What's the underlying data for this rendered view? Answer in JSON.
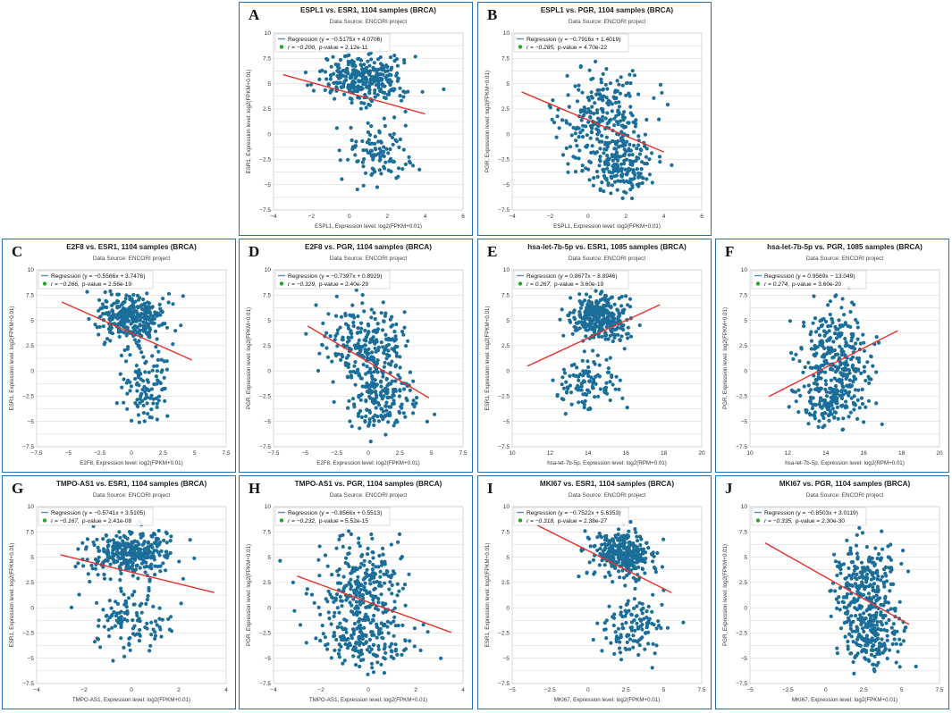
{
  "figure": {
    "colors": {
      "points": "#1a6e99",
      "regression": "#e8322b",
      "legend_line": "#5b8fb9",
      "legend_dot": "#22a822",
      "border": "#2c6fa4"
    }
  },
  "chart_data": [
    {
      "type": "scatter",
      "panel_letter": "A",
      "title": "ESPL1 vs. ESR1, 1104 samples (BRCA)",
      "subtitle": "Data Source: ENCORI project",
      "legend_regression": "Regression (y = −0.5175x + 4.0706)",
      "legend_stat_r": "r = −0.200,",
      "legend_stat_p": "p-value = 2.12e-11",
      "xlabel": "ESPL1, Expression level: log2(FPKM+0.01)",
      "ylabel": "ESR1, Expression level: log2(FPKM+0.01)",
      "xlim": [
        -4,
        6
      ],
      "ylim": [
        -7.5,
        10
      ],
      "xticks": [
        -4,
        -2,
        0,
        2,
        4,
        6
      ],
      "xtick_labels": [
        "−4",
        "−2",
        "0",
        "2",
        "4",
        "6"
      ],
      "yticks": [
        -7.5,
        -5,
        -2.5,
        0,
        2.5,
        5,
        7.5,
        10
      ],
      "ytick_labels": [
        "−7.5",
        "−5",
        "−2.5",
        "0",
        "2.5",
        "5",
        "7.5",
        "10"
      ],
      "regression": {
        "slope": -0.5175,
        "intercept": 4.0706,
        "x_from": -3.5,
        "x_to": 4
      },
      "clusters": [
        {
          "n": 320,
          "cx": 0.8,
          "cy": 5.3,
          "sx": 1.1,
          "sy": 1.2
        },
        {
          "n": 110,
          "cx": 1.5,
          "cy": -2.0,
          "sx": 0.9,
          "sy": 1.6
        }
      ]
    },
    {
      "type": "scatter",
      "panel_letter": "B",
      "title": "ESPL1 vs. PGR, 1104 samples (BRCA)",
      "subtitle": "Data Source: ENCORI project",
      "legend_regression": "Regression (y = −0.7916x + 1.4019)",
      "legend_stat_r": "r = −0.285,",
      "legend_stat_p": "p-value = 4.70e-22",
      "xlabel": "ESPL1, Expression level: log2(FPKM+0.01)",
      "ylabel": "PGR, Expression level: log2(FPKM+0.01)",
      "xlim": [
        -4,
        6
      ],
      "ylim": [
        -7.5,
        10
      ],
      "xticks": [
        -4,
        -2,
        0,
        2,
        4,
        6
      ],
      "xtick_labels": [
        "−4",
        "−2",
        "0",
        "2",
        "4",
        "6"
      ],
      "yticks": [
        -7.5,
        -5,
        -2.5,
        0,
        2.5,
        5,
        7.5,
        10
      ],
      "ytick_labels": [
        "−7.5",
        "−5",
        "−2.5",
        "0",
        "2.5",
        "5",
        "7.5",
        "10"
      ],
      "regression": {
        "slope": -0.7916,
        "intercept": 1.4019,
        "x_from": -3.5,
        "x_to": 4
      },
      "clusters": [
        {
          "n": 260,
          "cx": 0.8,
          "cy": 1.5,
          "sx": 1.2,
          "sy": 2.3
        },
        {
          "n": 170,
          "cx": 1.6,
          "cy": -3.0,
          "sx": 0.9,
          "sy": 1.5
        }
      ]
    },
    {
      "type": "scatter",
      "panel_letter": "C",
      "title": "E2F8 vs. ESR1, 1104 samples (BRCA)",
      "subtitle": "Data Source: ENCORI project",
      "legend_regression": "Regression (y = −0.5566x + 3.7476)",
      "legend_stat_r": "r = −0.266,",
      "legend_stat_p": "p-value = 2.56e-19",
      "xlabel": "E2F8, Expression level: log2(FPKM+0.01)",
      "ylabel": "ESR1, Expression level: log2(FPKM+0.01)",
      "xlim": [
        -7.5,
        7.5
      ],
      "ylim": [
        -7.5,
        10
      ],
      "xticks": [
        -7.5,
        -5,
        -2.5,
        0,
        2.5,
        5,
        7.5
      ],
      "xtick_labels": [
        "−7.5",
        "−5",
        "−2.5",
        "0",
        "2.5",
        "5",
        "7.5"
      ],
      "yticks": [
        -7.5,
        -5,
        -2.5,
        0,
        2.5,
        5,
        7.5,
        10
      ],
      "ytick_labels": [
        "−7.5",
        "−5",
        "−2.5",
        "0",
        "2.5",
        "5",
        "7.5",
        "10"
      ],
      "regression": {
        "slope": -0.5566,
        "intercept": 3.7476,
        "x_from": -5.5,
        "x_to": 4.8
      },
      "clusters": [
        {
          "n": 320,
          "cx": 0.0,
          "cy": 5.3,
          "sx": 1.4,
          "sy": 1.1
        },
        {
          "n": 110,
          "cx": 1.0,
          "cy": -1.5,
          "sx": 1.0,
          "sy": 1.7
        }
      ]
    },
    {
      "type": "scatter",
      "panel_letter": "D",
      "title": "E2F8 vs. PGR, 1104 samples (BRCA)",
      "subtitle": "Data Source: ENCORI project",
      "legend_regression": "Regression (y = −0.7397x + 0.8929)",
      "legend_stat_r": "r = −0.329,",
      "legend_stat_p": "p-value = 2.40e-29",
      "xlabel": "E2F8, Expression level: log2(FPKM+0.01)",
      "ylabel": "PGR, Expression level: log2(FPKM+0.01)",
      "xlim": [
        -7.5,
        7.5
      ],
      "ylim": [
        -7.5,
        10
      ],
      "xticks": [
        -7.5,
        -5,
        -2.5,
        0,
        2.5,
        5,
        7.5
      ],
      "xtick_labels": [
        "−7.5",
        "−5",
        "−2.5",
        "0",
        "2.5",
        "5",
        "7.5"
      ],
      "yticks": [
        -7.5,
        -5,
        -2.5,
        0,
        2.5,
        5,
        7.5,
        10
      ],
      "ytick_labels": [
        "−7.5",
        "−5",
        "−2.5",
        "0",
        "2.5",
        "5",
        "7.5",
        "10"
      ],
      "regression": {
        "slope": -0.7397,
        "intercept": 0.8929,
        "x_from": -4.8,
        "x_to": 4.8
      },
      "clusters": [
        {
          "n": 250,
          "cx": -0.3,
          "cy": 2.5,
          "sx": 1.5,
          "sy": 2.1
        },
        {
          "n": 180,
          "cx": 1.0,
          "cy": -2.8,
          "sx": 1.2,
          "sy": 1.6
        }
      ]
    },
    {
      "type": "scatter",
      "panel_letter": "E",
      "title": "hsa-let-7b-5p vs. ESR1, 1085 samples (BRCA)",
      "subtitle": "Data Source: ENCORI project",
      "legend_regression": "Regression (y = 0.8677x − 8.8946)",
      "legend_stat_r": "r = 0.267,",
      "legend_stat_p": "p-value = 3.60e-19",
      "xlabel": "hsa-let-7b-5p, Expression level: log2(RPM+0.01)",
      "ylabel": "ESR1, Expression level: log2(FPKM+0.01)",
      "xlim": [
        10,
        20
      ],
      "ylim": [
        -7.5,
        10
      ],
      "xticks": [
        10,
        12,
        14,
        16,
        18,
        20
      ],
      "xtick_labels": [
        "10",
        "12",
        "14",
        "16",
        "18",
        "20"
      ],
      "yticks": [
        -7.5,
        -5,
        -2.5,
        0,
        2.5,
        5,
        7.5,
        10
      ],
      "ytick_labels": [
        "−7.5",
        "−5",
        "−2.5",
        "0",
        "2.5",
        "5",
        "7.5",
        "10"
      ],
      "regression": {
        "slope": 0.8677,
        "intercept": -8.8946,
        "x_from": 10.8,
        "x_to": 17.8
      },
      "clusters": [
        {
          "n": 320,
          "cx": 14.6,
          "cy": 5.3,
          "sx": 0.8,
          "sy": 1.2
        },
        {
          "n": 110,
          "cx": 14.0,
          "cy": -1.5,
          "sx": 0.8,
          "sy": 1.6
        }
      ]
    },
    {
      "type": "scatter",
      "panel_letter": "F",
      "title": "hsa-let-7b-5p vs. PGR, 1085 samples (BRCA)",
      "subtitle": "Data Source: ENCORI project",
      "legend_regression": "Regression (y = 0.9569x − 13.049)",
      "legend_stat_r": "r = 0.274,",
      "legend_stat_p": "p-value = 3.60e-20",
      "xlabel": "hsa-let-7b-5p, Expression level: log2(RPM+0.01)",
      "ylabel": "PGR, Expression level: log2(FPKM+0.01)",
      "xlim": [
        10,
        20
      ],
      "ylim": [
        -7.5,
        10
      ],
      "xticks": [
        10,
        12,
        14,
        16,
        18,
        20
      ],
      "xtick_labels": [
        "10",
        "12",
        "14",
        "16",
        "18",
        "20"
      ],
      "yticks": [
        -7.5,
        -5,
        -2.5,
        0,
        2.5,
        5,
        7.5,
        10
      ],
      "ytick_labels": [
        "−7.5",
        "−5",
        "−2.5",
        "0",
        "2.5",
        "5",
        "7.5",
        "10"
      ],
      "regression": {
        "slope": 0.9569,
        "intercept": -13.049,
        "x_from": 11.0,
        "x_to": 17.8
      },
      "clusters": [
        {
          "n": 250,
          "cx": 14.5,
          "cy": 2.0,
          "sx": 0.9,
          "sy": 2.3
        },
        {
          "n": 180,
          "cx": 14.3,
          "cy": -2.8,
          "sx": 0.9,
          "sy": 1.5
        }
      ]
    },
    {
      "type": "scatter",
      "panel_letter": "G",
      "title": "TMPO-AS1 vs. ESR1, 1104 samples (BRCA)",
      "subtitle": "Data Source: ENCORI project",
      "legend_regression": "Regression (y = −0.5741x + 3.5105)",
      "legend_stat_r": "r = −0.167,",
      "legend_stat_p": "p-value = 2.41e-08",
      "xlabel": "TMPO-AS1, Expression level: log2(FPKM+0.01)",
      "ylabel": "ESR1, Expression level: log2(FPKM+0.01)",
      "xlim": [
        -4,
        4
      ],
      "ylim": [
        -7.5,
        10
      ],
      "xticks": [
        -4,
        -2,
        0,
        2,
        4
      ],
      "xtick_labels": [
        "−4",
        "−2",
        "0",
        "2",
        "4"
      ],
      "yticks": [
        -7.5,
        -5,
        -2.5,
        0,
        2.5,
        5,
        7.5,
        10
      ],
      "ytick_labels": [
        "−7.5",
        "−5",
        "−2.5",
        "0",
        "2.5",
        "5",
        "7.5",
        "10"
      ],
      "regression": {
        "slope": -0.5741,
        "intercept": 3.5105,
        "x_from": -3.0,
        "x_to": 3.5
      },
      "clusters": [
        {
          "n": 320,
          "cx": -0.1,
          "cy": 5.3,
          "sx": 0.9,
          "sy": 1.1
        },
        {
          "n": 120,
          "cx": 0.0,
          "cy": -1.5,
          "sx": 0.9,
          "sy": 1.7
        }
      ]
    },
    {
      "type": "scatter",
      "panel_letter": "H",
      "title": "TMPO-AS1 vs. PGR, 1104 samples (BRCA)",
      "subtitle": "Data Source: ENCORI project",
      "legend_regression": "Regression (y = −0.8566x + 0.5513)",
      "legend_stat_r": "r = −0.232,",
      "legend_stat_p": "p-value = 5.52e-15",
      "xlabel": "TMPO-AS1, Expression level: log2(FPKM+0.01)",
      "ylabel": "PGR, Expression level: log2(FPKM+0.01)",
      "xlim": [
        -4,
        4
      ],
      "ylim": [
        -7.5,
        10
      ],
      "xticks": [
        -4,
        -2,
        0,
        2,
        4
      ],
      "xtick_labels": [
        "−4",
        "−2",
        "0",
        "2",
        "4"
      ],
      "yticks": [
        -7.5,
        -5,
        -2.5,
        0,
        2.5,
        5,
        7.5,
        10
      ],
      "ytick_labels": [
        "−7.5",
        "−5",
        "−2.5",
        "0",
        "2.5",
        "5",
        "7.5",
        "10"
      ],
      "regression": {
        "slope": -0.8566,
        "intercept": 0.5513,
        "x_from": -3.0,
        "x_to": 3.5
      },
      "clusters": [
        {
          "n": 250,
          "cx": -0.2,
          "cy": 2.0,
          "sx": 1.0,
          "sy": 2.2
        },
        {
          "n": 180,
          "cx": 0.0,
          "cy": -3.0,
          "sx": 1.0,
          "sy": 1.5
        }
      ]
    },
    {
      "type": "scatter",
      "panel_letter": "I",
      "title": "MKI67 vs. ESR1, 1104 samples (BRCA)",
      "subtitle": "Data Source: ENCORI project",
      "legend_regression": "Regression (y = −0.7522x + 5.6353)",
      "legend_stat_r": "r = −0.318,",
      "legend_stat_p": "p-value = 2.38e-27",
      "xlabel": "MKI67, Expression level: log2(FPKM+0.01)",
      "ylabel": "ESR1, Expression level: log2(FPKM+0.01)",
      "xlim": [
        -5,
        7.5
      ],
      "ylim": [
        -7.5,
        10
      ],
      "xticks": [
        -5,
        -2.5,
        0,
        2.5,
        5,
        7.5
      ],
      "xtick_labels": [
        "−5",
        "−2.5",
        "0",
        "2.5",
        "5",
        "7.5"
      ],
      "yticks": [
        -7.5,
        -5,
        -2.5,
        0,
        2.5,
        5,
        7.5,
        10
      ],
      "ytick_labels": [
        "−7.5",
        "−5",
        "−2.5",
        "0",
        "2.5",
        "5",
        "7.5",
        "10"
      ],
      "regression": {
        "slope": -0.7522,
        "intercept": 5.6353,
        "x_from": -3.5,
        "x_to": 5.5
      },
      "clusters": [
        {
          "n": 320,
          "cx": 2.3,
          "cy": 5.3,
          "sx": 1.0,
          "sy": 1.1
        },
        {
          "n": 120,
          "cx": 3.0,
          "cy": -1.8,
          "sx": 1.0,
          "sy": 1.6
        }
      ]
    },
    {
      "type": "scatter",
      "panel_letter": "J",
      "title": "MKI67 vs. PGR, 1104 samples (BRCA)",
      "subtitle": "Data Source: ENCORI project",
      "legend_regression": "Regression (y = −0.8503x + 3.0119)",
      "legend_stat_r": "r = −0.335,",
      "legend_stat_p": "p-value = 2.30e-30",
      "xlabel": "MKI67, Expression level: log2(FPKM+0.01)",
      "ylabel": "PGR, Expression level: log2(FPKM+0.01)",
      "xlim": [
        -5,
        7.5
      ],
      "ylim": [
        -7.5,
        10
      ],
      "xticks": [
        -5,
        -2.5,
        0,
        2.5,
        5,
        7.5
      ],
      "xtick_labels": [
        "−5",
        "−2.5",
        "0",
        "2.5",
        "5",
        "7.5"
      ],
      "yticks": [
        -7.5,
        -5,
        -2.5,
        0,
        2.5,
        5,
        7.5,
        10
      ],
      "ytick_labels": [
        "−7.5",
        "−5",
        "−2.5",
        "0",
        "2.5",
        "5",
        "7.5",
        "10"
      ],
      "regression": {
        "slope": -0.8503,
        "intercept": 3.0119,
        "x_from": -4.0,
        "x_to": 5.5
      },
      "clusters": [
        {
          "n": 250,
          "cx": 2.6,
          "cy": 2.0,
          "sx": 1.0,
          "sy": 2.2
        },
        {
          "n": 180,
          "cx": 3.0,
          "cy": -2.8,
          "sx": 1.0,
          "sy": 1.5
        }
      ]
    }
  ]
}
